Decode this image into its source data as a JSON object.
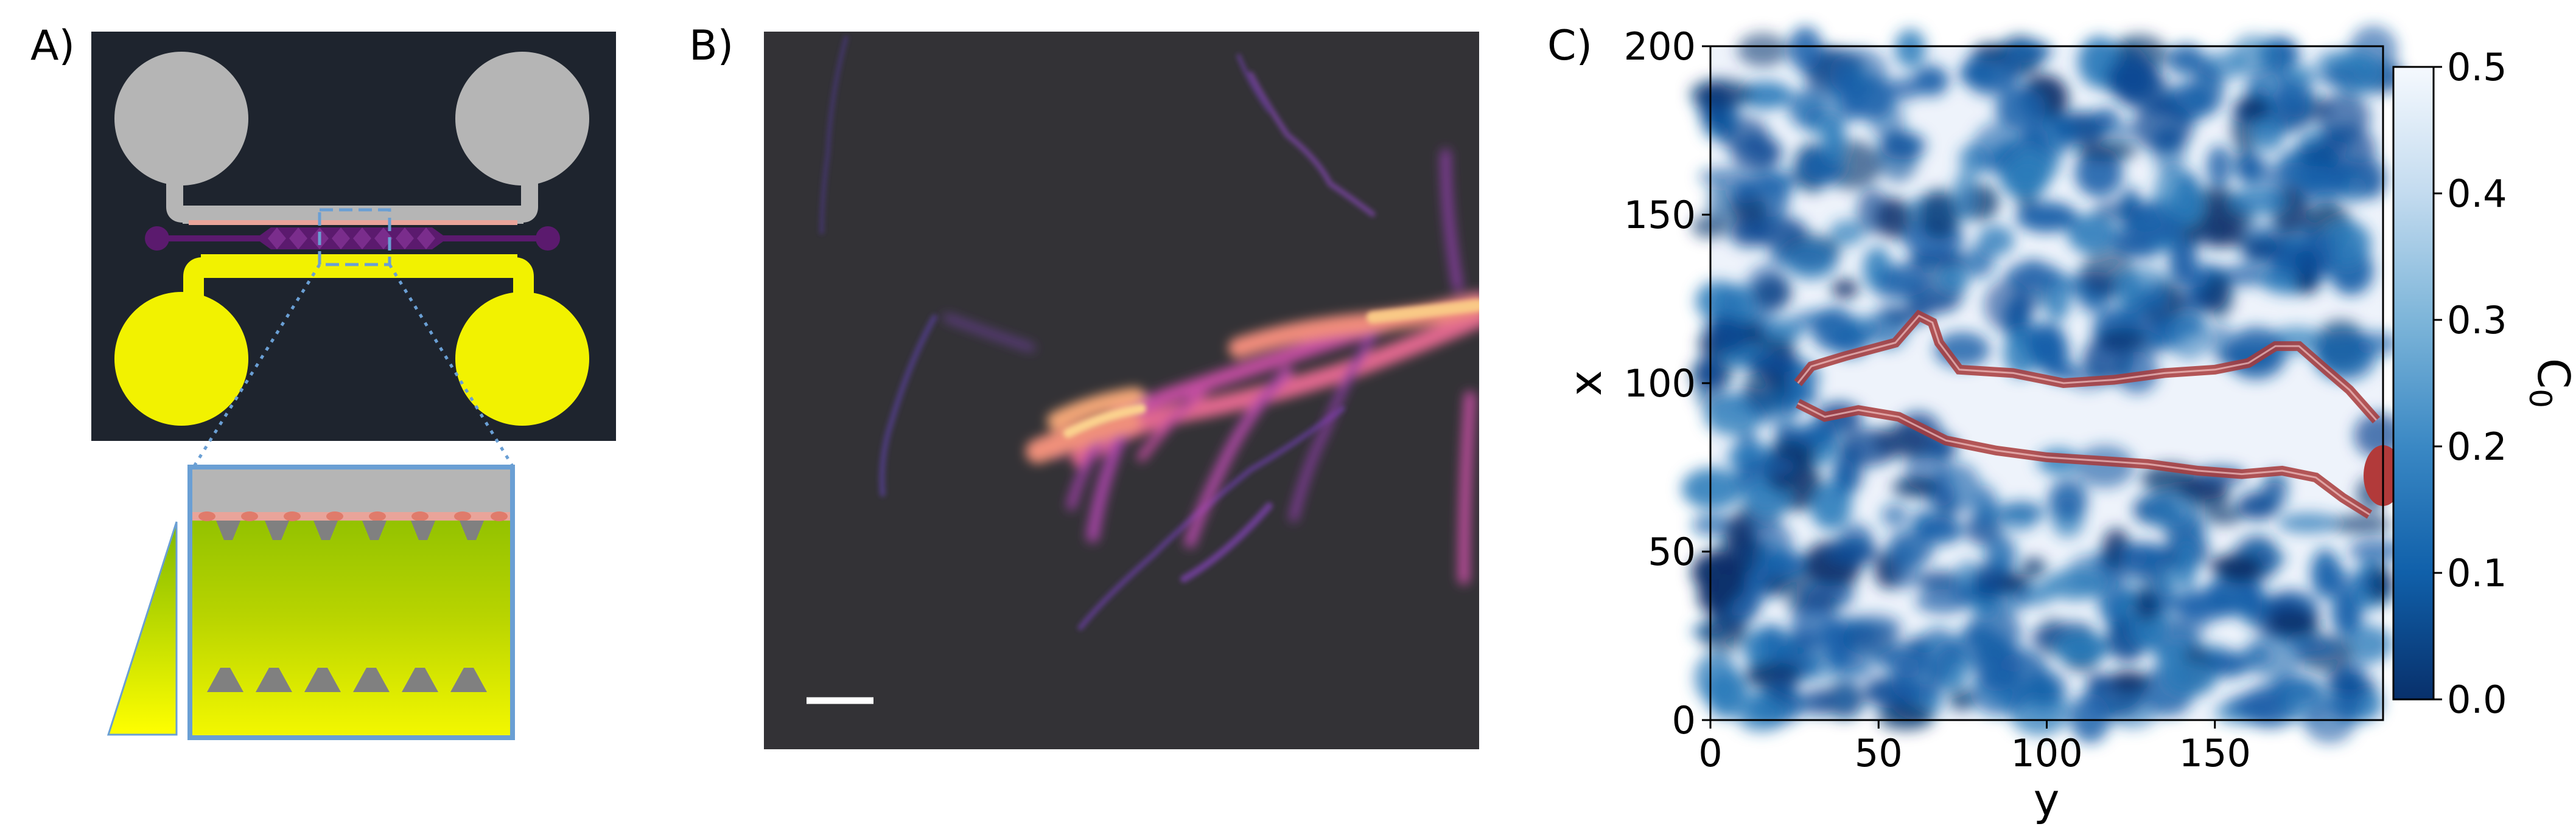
{
  "figure": {
    "panels": [
      {
        "id": "A",
        "label": "A)"
      },
      {
        "id": "B",
        "label": "B)"
      },
      {
        "id": "C",
        "label": "C)"
      }
    ]
  },
  "panel_c": {
    "x_axis_label": "y",
    "y_axis_label": "x",
    "x_ticks": [
      "0",
      "50",
      "100",
      "150"
    ],
    "y_ticks": [
      "0",
      "50",
      "100",
      "150",
      "200"
    ],
    "colorbar": {
      "label_main": "C",
      "label_sub": "0",
      "ticks": [
        "0.0",
        "0.1",
        "0.2",
        "0.3",
        "0.4",
        "0.5"
      ]
    }
  },
  "chart_data": {
    "type": "heatmap",
    "title": "",
    "xlabel": "y",
    "ylabel": "x",
    "xlim": [
      0,
      200
    ],
    "ylim": [
      0,
      200
    ],
    "x_ticks": [
      0,
      50,
      100,
      150
    ],
    "y_ticks": [
      0,
      50,
      100,
      150,
      200
    ],
    "colorbar": {
      "label": "C0",
      "range": [
        0.0,
        0.5
      ],
      "ticks": [
        0.0,
        0.1,
        0.2,
        0.3,
        0.4,
        0.5
      ],
      "colormap": "Blues_r"
    },
    "overlay": {
      "shape": "cell-contour",
      "color": "#a83a3a",
      "upper_edge": [
        [
          26,
          100
        ],
        [
          30,
          105
        ],
        [
          40,
          108
        ],
        [
          55,
          112
        ],
        [
          62,
          120
        ],
        [
          66,
          118
        ],
        [
          68,
          112
        ],
        [
          74,
          104
        ],
        [
          90,
          103
        ],
        [
          105,
          100
        ],
        [
          120,
          101
        ],
        [
          135,
          103
        ],
        [
          150,
          104
        ],
        [
          160,
          106
        ],
        [
          168,
          111
        ],
        [
          175,
          111
        ],
        [
          183,
          104
        ],
        [
          190,
          98
        ],
        [
          198,
          89
        ]
      ],
      "lower_edge": [
        [
          26,
          94
        ],
        [
          34,
          90
        ],
        [
          44,
          92
        ],
        [
          56,
          90
        ],
        [
          70,
          83
        ],
        [
          85,
          80
        ],
        [
          100,
          78
        ],
        [
          115,
          77
        ],
        [
          130,
          76
        ],
        [
          145,
          74
        ],
        [
          158,
          73
        ],
        [
          170,
          74
        ],
        [
          180,
          72
        ],
        [
          188,
          66
        ],
        [
          196,
          61
        ]
      ]
    }
  }
}
